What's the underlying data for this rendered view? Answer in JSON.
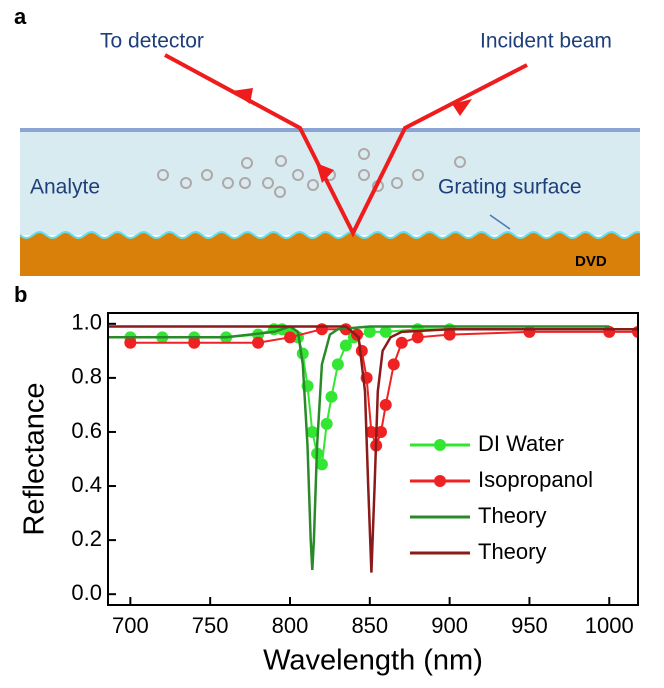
{
  "panel_a": {
    "label": "a",
    "to_detector": "To detector",
    "incident_beam": "Incident beam",
    "analyte": "Analyte",
    "grating_surface": "Grating surface",
    "dvd": "DVD"
  },
  "chart_data": {
    "type": "line",
    "panel_label": "b",
    "xlabel": "Wavelength (nm)",
    "ylabel": "Reflectance",
    "xlim": [
      686,
      1018
    ],
    "ylim": [
      -0.04,
      1.04
    ],
    "xticks": [
      700,
      750,
      800,
      850,
      900,
      950,
      1000
    ],
    "yticks": [
      {
        "value": 0,
        "label": "0.0"
      },
      0.2,
      0.4,
      0.6,
      0.8,
      {
        "value": 1,
        "label": "1.0"
      }
    ],
    "series": [
      {
        "name": "DI Water",
        "color": "#33e633",
        "marker": true,
        "x": [
          700,
          720,
          740,
          760,
          780,
          790,
          795,
          800,
          805,
          808,
          811,
          814,
          817,
          820,
          823,
          826,
          830,
          835,
          840,
          850,
          860,
          880,
          900
        ],
        "values": [
          0.95,
          0.95,
          0.95,
          0.95,
          0.96,
          0.98,
          0.98,
          0.97,
          0.95,
          0.89,
          0.77,
          0.6,
          0.52,
          0.48,
          0.63,
          0.73,
          0.85,
          0.92,
          0.95,
          0.97,
          0.97,
          0.98,
          0.98
        ]
      },
      {
        "name": "Isopropanol",
        "color": "#ee2222",
        "marker": true,
        "x": [
          700,
          740,
          780,
          800,
          820,
          835,
          842,
          845,
          848,
          851,
          854,
          857,
          860,
          865,
          870,
          880,
          900,
          950,
          1000,
          1018
        ],
        "values": [
          0.93,
          0.93,
          0.93,
          0.95,
          0.98,
          0.98,
          0.96,
          0.9,
          0.8,
          0.6,
          0.55,
          0.6,
          0.7,
          0.85,
          0.93,
          0.95,
          0.96,
          0.97,
          0.97,
          0.97
        ]
      },
      {
        "name": "Theory",
        "color": "#2a8a2a",
        "marker": false,
        "x": [
          686,
          760,
          790,
          800,
          805,
          808,
          811,
          813,
          814,
          815,
          817,
          820,
          825,
          830,
          850,
          1000
        ],
        "values": [
          0.95,
          0.95,
          0.97,
          0.99,
          0.97,
          0.85,
          0.55,
          0.2,
          0.09,
          0.2,
          0.55,
          0.85,
          0.96,
          0.98,
          0.99,
          0.99
        ]
      },
      {
        "name": "Theory",
        "color": "#8b1a1a",
        "marker": false,
        "x": [
          686,
          800,
          835,
          843,
          847,
          849,
          851,
          853,
          855,
          858,
          863,
          870,
          900,
          1018
        ],
        "values": [
          0.99,
          0.99,
          0.99,
          0.95,
          0.75,
          0.4,
          0.08,
          0.4,
          0.75,
          0.9,
          0.95,
          0.97,
          0.98,
          0.98
        ]
      }
    ]
  }
}
